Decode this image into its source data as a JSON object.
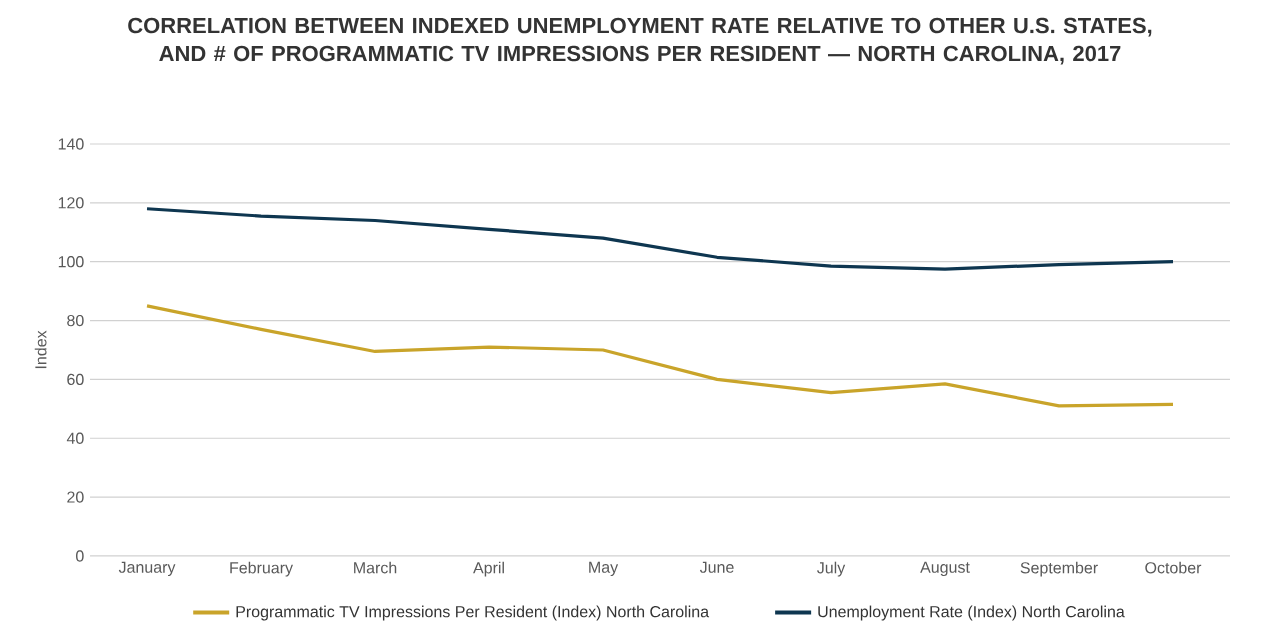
{
  "chart_data": {
    "type": "line",
    "title": "CORRELATION BETWEEN INDEXED UNEMPLOYMENT RATE  RELATIVE TO OTHER U.S. STATES, AND # OF PROGRAMMATIC TV IMPRESSIONS PER RESIDENT — NORTH CAROLINA, 2017",
    "ylabel": "Index",
    "categories": [
      "January",
      "February",
      "March",
      "April",
      "May",
      "June",
      "July",
      "August",
      "September",
      "October"
    ],
    "series": [
      {
        "name": "Programmatic TV Impressions Per Resident (Index) North Carolina",
        "color": "#c9a42a",
        "values": [
          85,
          77,
          69.5,
          71,
          70,
          60,
          55.5,
          58.5,
          51,
          51.5
        ]
      },
      {
        "name": "Unemployment Rate (Index) North Carolina",
        "color": "#0e3650",
        "values": [
          118,
          115.5,
          114,
          111,
          108,
          101.5,
          98.5,
          97.5,
          99,
          100
        ]
      }
    ],
    "ylim": [
      0,
      140
    ],
    "yticks": [
      0,
      20,
      40,
      60,
      80,
      100,
      120,
      140
    ],
    "grid": "y",
    "legend": "bottom",
    "marker": "none",
    "line_style": "solid"
  }
}
